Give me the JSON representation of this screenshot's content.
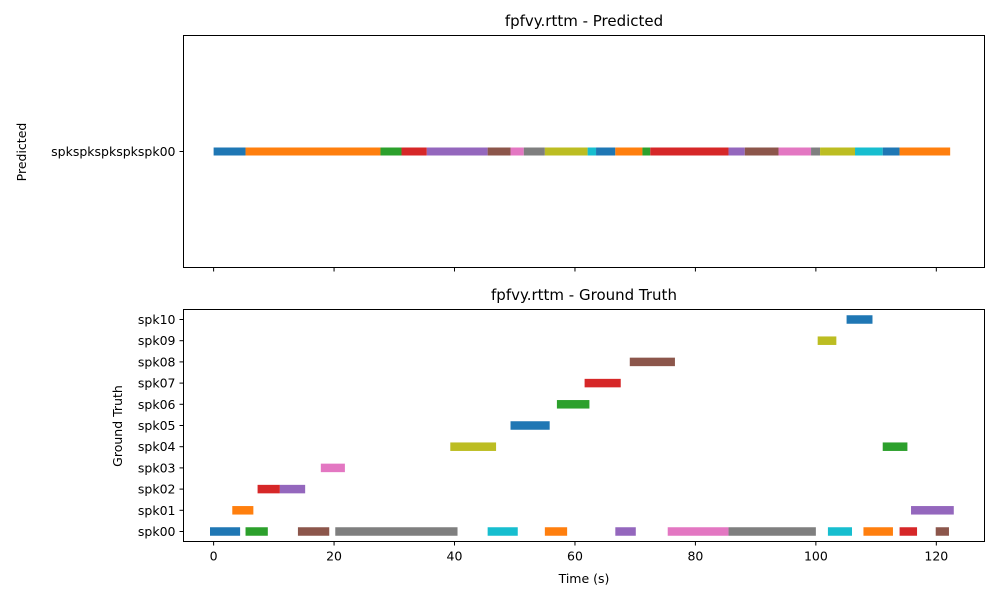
{
  "figure": {
    "top_title": "fpfvy.rttm - Predicted",
    "top_ylabel": "Predicted",
    "bottom_title": "fpfvy.rttm - Ground Truth",
    "bottom_ylabel": "Ground Truth",
    "xlabel": "Time (s)"
  },
  "chart_data": [
    {
      "type": "broken_barh",
      "title": "fpfvy.rttm - Predicted",
      "ylabel": "Predicted",
      "xlabel": "",
      "xlim": [
        -5,
        128
      ],
      "xticks": [
        0,
        20,
        40,
        60,
        80,
        100,
        120
      ],
      "show_xtick_labels": false,
      "grid": false,
      "rows": [
        "spkspkspkspkspk00"
      ],
      "segments": [
        {
          "row": "spkspkspkspkspk00",
          "start": 0.0,
          "end": 5.3,
          "color": "#1f77b4"
        },
        {
          "row": "spkspkspkspkspk00",
          "start": 5.3,
          "end": 27.7,
          "color": "#ff7f0e"
        },
        {
          "row": "spkspkspkspkspk00",
          "start": 27.7,
          "end": 31.2,
          "color": "#2ca02c"
        },
        {
          "row": "spkspkspkspkspk00",
          "start": 31.2,
          "end": 35.4,
          "color": "#d62728"
        },
        {
          "row": "spkspkspkspkspk00",
          "start": 35.4,
          "end": 45.5,
          "color": "#9467bd"
        },
        {
          "row": "spkspkspkspkspk00",
          "start": 45.5,
          "end": 49.3,
          "color": "#8c564b"
        },
        {
          "row": "spkspkspkspkspk00",
          "start": 49.3,
          "end": 51.5,
          "color": "#e377c2"
        },
        {
          "row": "spkspkspkspkspk00",
          "start": 51.5,
          "end": 55.0,
          "color": "#7f7f7f"
        },
        {
          "row": "spkspkspkspkspk00",
          "start": 55.0,
          "end": 62.1,
          "color": "#bcbd22"
        },
        {
          "row": "spkspkspkspkspk00",
          "start": 62.1,
          "end": 63.5,
          "color": "#17becf"
        },
        {
          "row": "spkspkspkspkspk00",
          "start": 63.5,
          "end": 66.7,
          "color": "#1f77b4"
        },
        {
          "row": "spkspkspkspkspk00",
          "start": 66.7,
          "end": 71.2,
          "color": "#ff7f0e"
        },
        {
          "row": "spkspkspkspkspk00",
          "start": 71.2,
          "end": 72.5,
          "color": "#2ca02c"
        },
        {
          "row": "spkspkspkspkspk00",
          "start": 72.5,
          "end": 85.5,
          "color": "#d62728"
        },
        {
          "row": "spkspkspkspkspk00",
          "start": 85.5,
          "end": 88.2,
          "color": "#9467bd"
        },
        {
          "row": "spkspkspkspkspk00",
          "start": 88.2,
          "end": 93.8,
          "color": "#8c564b"
        },
        {
          "row": "spkspkspkspkspk00",
          "start": 93.8,
          "end": 99.2,
          "color": "#e377c2"
        },
        {
          "row": "spkspkspkspkspk00",
          "start": 99.2,
          "end": 100.7,
          "color": "#7f7f7f"
        },
        {
          "row": "spkspkspkspkspk00",
          "start": 100.7,
          "end": 106.5,
          "color": "#bcbd22"
        },
        {
          "row": "spkspkspkspkspk00",
          "start": 106.5,
          "end": 111.1,
          "color": "#17becf"
        },
        {
          "row": "spkspkspkspkspk00",
          "start": 111.1,
          "end": 113.9,
          "color": "#1f77b4"
        },
        {
          "row": "spkspkspkspkspk00",
          "start": 113.9,
          "end": 122.3,
          "color": "#ff7f0e"
        }
      ]
    },
    {
      "type": "broken_barh",
      "title": "fpfvy.rttm - Ground Truth",
      "ylabel": "Ground Truth",
      "xlabel": "Time (s)",
      "xlim": [
        -5,
        128
      ],
      "xticks": [
        0,
        20,
        40,
        60,
        80,
        100,
        120
      ],
      "show_xtick_labels": true,
      "grid": false,
      "rows": [
        "spk00",
        "spk01",
        "spk02",
        "spk03",
        "spk04",
        "spk05",
        "spk06",
        "spk07",
        "spk08",
        "spk09",
        "spk10"
      ],
      "segments": [
        {
          "row": "spk00",
          "start": -0.6,
          "end": 4.4,
          "color": "#1f77b4"
        },
        {
          "row": "spk00",
          "start": 5.3,
          "end": 9.0,
          "color": "#2ca02c"
        },
        {
          "row": "spk00",
          "start": 14.0,
          "end": 19.2,
          "color": "#8c564b"
        },
        {
          "row": "spk00",
          "start": 20.2,
          "end": 40.5,
          "color": "#7f7f7f"
        },
        {
          "row": "spk00",
          "start": 45.5,
          "end": 50.5,
          "color": "#17becf"
        },
        {
          "row": "spk00",
          "start": 55.0,
          "end": 58.7,
          "color": "#ff7f0e"
        },
        {
          "row": "spk00",
          "start": 66.7,
          "end": 70.1,
          "color": "#9467bd"
        },
        {
          "row": "spk00",
          "start": 75.4,
          "end": 85.5,
          "color": "#e377c2"
        },
        {
          "row": "spk00",
          "start": 85.5,
          "end": 100.0,
          "color": "#7f7f7f"
        },
        {
          "row": "spk00",
          "start": 102.0,
          "end": 106.0,
          "color": "#17becf"
        },
        {
          "row": "spk00",
          "start": 107.9,
          "end": 112.8,
          "color": "#ff7f0e"
        },
        {
          "row": "spk00",
          "start": 113.9,
          "end": 116.8,
          "color": "#d62728"
        },
        {
          "row": "spk00",
          "start": 119.9,
          "end": 122.1,
          "color": "#8c564b"
        },
        {
          "row": "spk01",
          "start": 3.1,
          "end": 6.6,
          "color": "#ff7f0e"
        },
        {
          "row": "spk01",
          "start": 115.8,
          "end": 122.9,
          "color": "#9467bd"
        },
        {
          "row": "spk02",
          "start": 7.3,
          "end": 11.0,
          "color": "#d62728"
        },
        {
          "row": "spk02",
          "start": 11.0,
          "end": 15.2,
          "color": "#9467bd"
        },
        {
          "row": "spk03",
          "start": 17.8,
          "end": 21.8,
          "color": "#e377c2"
        },
        {
          "row": "spk04",
          "start": 39.3,
          "end": 46.9,
          "color": "#bcbd22"
        },
        {
          "row": "spk04",
          "start": 111.1,
          "end": 115.2,
          "color": "#2ca02c"
        },
        {
          "row": "spk05",
          "start": 49.3,
          "end": 55.8,
          "color": "#1f77b4"
        },
        {
          "row": "spk06",
          "start": 57.0,
          "end": 62.4,
          "color": "#2ca02c"
        },
        {
          "row": "spk07",
          "start": 61.6,
          "end": 67.6,
          "color": "#d62728"
        },
        {
          "row": "spk08",
          "start": 69.1,
          "end": 76.6,
          "color": "#8c564b"
        },
        {
          "row": "spk09",
          "start": 100.3,
          "end": 103.4,
          "color": "#bcbd22"
        },
        {
          "row": "spk10",
          "start": 105.1,
          "end": 109.4,
          "color": "#1f77b4"
        }
      ]
    }
  ]
}
